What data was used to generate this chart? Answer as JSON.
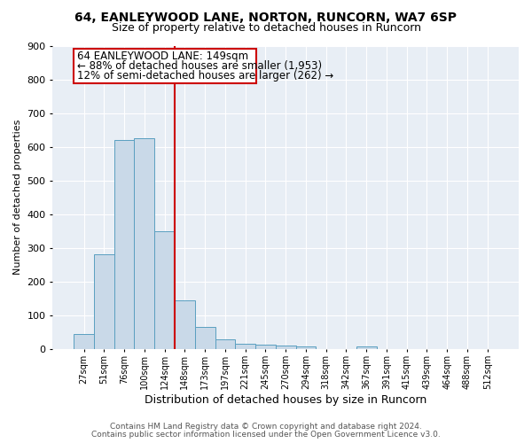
{
  "title1": "64, EANLEYWOOD LANE, NORTON, RUNCORN, WA7 6SP",
  "title2": "Size of property relative to detached houses in Runcorn",
  "xlabel": "Distribution of detached houses by size in Runcorn",
  "ylabel": "Number of detached properties",
  "categories": [
    "27sqm",
    "51sqm",
    "76sqm",
    "100sqm",
    "124sqm",
    "148sqm",
    "173sqm",
    "197sqm",
    "221sqm",
    "245sqm",
    "270sqm",
    "294sqm",
    "318sqm",
    "342sqm",
    "367sqm",
    "391sqm",
    "415sqm",
    "439sqm",
    "464sqm",
    "488sqm",
    "512sqm"
  ],
  "values": [
    45,
    280,
    620,
    625,
    350,
    145,
    65,
    30,
    15,
    12,
    10,
    8,
    0,
    0,
    8,
    0,
    0,
    0,
    0,
    0,
    0
  ],
  "bar_color": "#c9d9e8",
  "bar_edge_color": "#5a9fc0",
  "red_line_x": 4.5,
  "annotation_line1": "64 EANLEYWOOD LANE: 149sqm",
  "annotation_line2": "← 88% of detached houses are smaller (1,953)",
  "annotation_line3": "12% of semi-detached houses are larger (262) →",
  "annotation_box_color": "#ffffff",
  "annotation_box_edge_color": "#cc0000",
  "red_line_color": "#cc0000",
  "ylim": [
    0,
    900
  ],
  "yticks": [
    0,
    100,
    200,
    300,
    400,
    500,
    600,
    700,
    800,
    900
  ],
  "footer1": "Contains HM Land Registry data © Crown copyright and database right 2024.",
  "footer2": "Contains public sector information licensed under the Open Government Licence v3.0.",
  "bg_color": "#e8eef5",
  "grid_color": "#ffffff",
  "title1_fontsize": 10,
  "title2_fontsize": 9,
  "ann_fontsize": 8.5,
  "ylabel_fontsize": 8,
  "xlabel_fontsize": 9
}
